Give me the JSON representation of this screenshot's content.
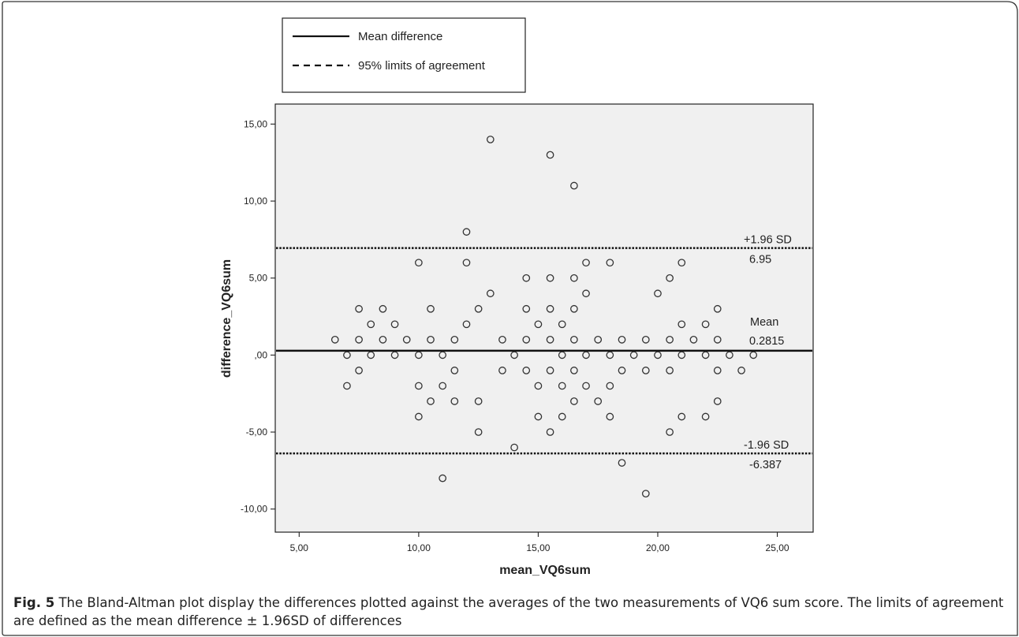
{
  "chart_data": {
    "type": "scatter",
    "xlabel": "mean_VQ6sum",
    "ylabel": "difference_VQ6sum",
    "xlim": [
      4,
      26.5
    ],
    "ylim": [
      -11.5,
      16.3
    ],
    "xticks": [
      "5,00",
      "10,00",
      "15,00",
      "20,00",
      "25,00"
    ],
    "xtick_values": [
      5,
      10,
      15,
      20,
      25
    ],
    "yticks": [
      "15,00",
      "10,00",
      "5,00",
      ",00",
      "-5,00",
      "-10,00"
    ],
    "ytick_values": [
      15,
      10,
      5,
      0,
      -5,
      -10
    ],
    "grid": false,
    "legend": {
      "placement": "top-left",
      "entries": [
        {
          "name": "Mean difference",
          "style": "solid"
        },
        {
          "name": "95% limits of agreement",
          "style": "dashed"
        }
      ]
    },
    "reference_lines": [
      {
        "value": 6.95,
        "style": "dotted",
        "label_top": "+1.96 SD",
        "label_bottom": "6.95"
      },
      {
        "value": 0.2815,
        "style": "solid",
        "label_top": "Mean",
        "label_bottom": "0.2815"
      },
      {
        "value": -6.387,
        "style": "dotted",
        "label_top": "-1.96 SD",
        "label_bottom": "-6.387"
      }
    ],
    "points": [
      [
        6.5,
        1
      ],
      [
        7,
        0
      ],
      [
        7,
        -2
      ],
      [
        7.5,
        3
      ],
      [
        7.5,
        1
      ],
      [
        7.5,
        -1
      ],
      [
        8,
        2
      ],
      [
        8,
        0
      ],
      [
        8.5,
        3
      ],
      [
        8.5,
        1
      ],
      [
        9,
        2
      ],
      [
        9,
        0
      ],
      [
        9.5,
        1
      ],
      [
        10,
        6
      ],
      [
        10,
        0
      ],
      [
        10,
        -2
      ],
      [
        10,
        -4
      ],
      [
        10.5,
        3
      ],
      [
        10.5,
        1
      ],
      [
        10.5,
        -3
      ],
      [
        11,
        0
      ],
      [
        11,
        -2
      ],
      [
        11,
        -8
      ],
      [
        11.5,
        1
      ],
      [
        11.5,
        -1
      ],
      [
        11.5,
        -3
      ],
      [
        12,
        8
      ],
      [
        12,
        6
      ],
      [
        12,
        2
      ],
      [
        12.5,
        3
      ],
      [
        12.5,
        -3
      ],
      [
        12.5,
        -5
      ],
      [
        13,
        14
      ],
      [
        13,
        4
      ],
      [
        13.5,
        1
      ],
      [
        13.5,
        -1
      ],
      [
        14,
        0
      ],
      [
        14,
        -6
      ],
      [
        14.5,
        5
      ],
      [
        14.5,
        3
      ],
      [
        14.5,
        1
      ],
      [
        14.5,
        -1
      ],
      [
        15,
        2
      ],
      [
        15,
        -2
      ],
      [
        15,
        -4
      ],
      [
        15.5,
        13
      ],
      [
        15.5,
        5
      ],
      [
        15.5,
        3
      ],
      [
        15.5,
        1
      ],
      [
        15.5,
        -1
      ],
      [
        15.5,
        -5
      ],
      [
        16,
        2
      ],
      [
        16,
        0
      ],
      [
        16,
        -2
      ],
      [
        16,
        -4
      ],
      [
        16.5,
        11
      ],
      [
        16.5,
        5
      ],
      [
        16.5,
        3
      ],
      [
        16.5,
        1
      ],
      [
        16.5,
        -1
      ],
      [
        16.5,
        -3
      ],
      [
        17,
        6
      ],
      [
        17,
        4
      ],
      [
        17,
        0
      ],
      [
        17,
        -2
      ],
      [
        17.5,
        1
      ],
      [
        17.5,
        -3
      ],
      [
        18,
        6
      ],
      [
        18,
        0
      ],
      [
        18,
        -2
      ],
      [
        18,
        -4
      ],
      [
        18.5,
        1
      ],
      [
        18.5,
        -1
      ],
      [
        18.5,
        -7
      ],
      [
        19,
        0
      ],
      [
        19.5,
        1
      ],
      [
        19.5,
        -1
      ],
      [
        19.5,
        -9
      ],
      [
        20,
        4
      ],
      [
        20,
        0
      ],
      [
        20.5,
        5
      ],
      [
        20.5,
        1
      ],
      [
        20.5,
        -1
      ],
      [
        20.5,
        -5
      ],
      [
        21,
        6
      ],
      [
        21,
        2
      ],
      [
        21,
        0
      ],
      [
        21,
        -4
      ],
      [
        21.5,
        1
      ],
      [
        22,
        2
      ],
      [
        22,
        0
      ],
      [
        22,
        -4
      ],
      [
        22.5,
        3
      ],
      [
        22.5,
        1
      ],
      [
        22.5,
        -1
      ],
      [
        22.5,
        -3
      ],
      [
        23,
        0
      ],
      [
        23.5,
        -1
      ],
      [
        24,
        0
      ]
    ]
  },
  "caption": {
    "label": "Fig. 5",
    "text": " The Bland-Altman plot display the differences plotted against the averages of the two measurements of VQ6 sum score. The limits of agreement are defined as the mean difference ± 1.96SD of differences"
  }
}
